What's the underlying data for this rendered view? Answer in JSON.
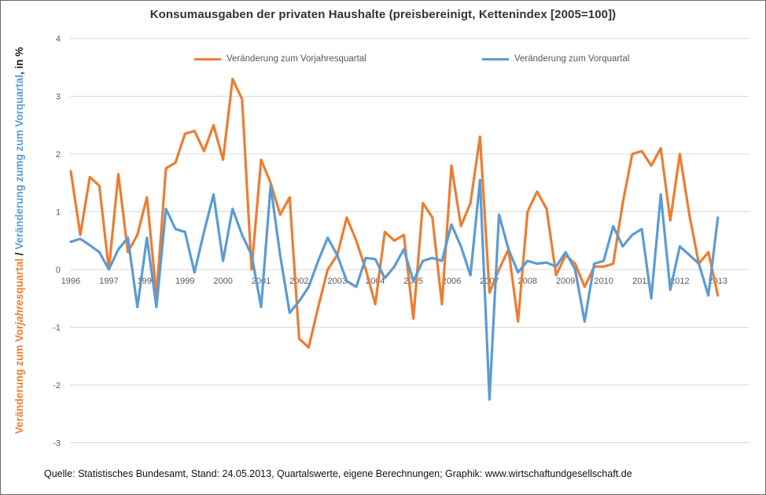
{
  "title": "Konsumausgaben der privaten Haushalte (preisbereinigt, Kettenindex [2005=100])",
  "legend": {
    "yoy": {
      "label": "Veränderung zum Vorjahresquartal",
      "color": "#ED7D31"
    },
    "qoq": {
      "label": "Veränderung zum Vorquartal",
      "color": "#5B9BD5"
    }
  },
  "y_axis_label": {
    "orange_prefix": "Veränderung zum Vor",
    "orange_italic": "jahres",
    "orange_suffix": "quartal",
    "separator": " / ",
    "blue_text": "Veränderung zumg zum Vorquartal",
    "black_suffix": ", in %"
  },
  "source_line": "Quelle: Statistisches Bundesamt, Stand: 24.05.2013,  Quartalswerte, eigene Berechnungen; Graphik: www.wirtschaftundgesellschaft.de",
  "colors": {
    "series_yoy": "#ED7D31",
    "series_qoq": "#5B9BD5",
    "gridline": "#D9D9D9",
    "tick_text": "#595959",
    "title_text": "#333333"
  },
  "chart_data": {
    "type": "line",
    "title": "Konsumausgaben der privaten Haushalte (preisbereinigt, Kettenindex [2005=100])",
    "ylabel": "Veränderung zum Vorjahresquartal / Veränderung zumg zum Vorquartal, in %",
    "ylim": [
      -3,
      4
    ],
    "yticks": [
      4,
      3,
      2,
      1,
      0,
      -1,
      -2,
      -3
    ],
    "grid": "horizontal",
    "legend_position": "top",
    "x_frequency": "quarterly",
    "x_tick_labels": [
      "1996",
      "1997",
      "1998",
      "1999",
      "2000",
      "2001",
      "2002",
      "2003",
      "2004",
      "2005",
      "2006",
      "2007",
      "2008",
      "2009",
      "2010",
      "2011",
      "2012",
      "2013"
    ],
    "x_tick_interval": 4,
    "series": [
      {
        "name": "Veränderung zum Vorjahresquartal",
        "color": "#ED7D31",
        "values": [
          1.7,
          0.6,
          1.6,
          1.45,
          0.0,
          1.65,
          0.3,
          0.6,
          1.25,
          -0.45,
          1.75,
          1.85,
          2.35,
          2.4,
          2.05,
          2.5,
          1.9,
          3.3,
          2.95,
          0.0,
          1.9,
          1.5,
          0.95,
          1.25,
          -1.2,
          -1.35,
          -0.65,
          0.0,
          0.25,
          0.9,
          0.5,
          0.0,
          -0.6,
          0.65,
          0.5,
          0.6,
          -0.85,
          1.15,
          0.9,
          -0.6,
          1.8,
          0.75,
          1.15,
          2.3,
          -0.4,
          0.0,
          0.35,
          -0.9,
          1.0,
          1.35,
          1.05,
          -0.1,
          0.25,
          0.1,
          -0.3,
          0.05,
          0.05,
          0.1,
          1.15,
          2.0,
          2.05,
          1.8,
          2.1,
          0.85,
          2.0,
          0.95,
          0.1,
          0.3,
          -0.45
        ]
      },
      {
        "name": "Veränderung zum Vorquartal",
        "color": "#5B9BD5",
        "values": [
          0.48,
          0.53,
          0.42,
          0.3,
          0.0,
          0.35,
          0.55,
          -0.65,
          0.55,
          -0.65,
          1.05,
          0.7,
          0.65,
          -0.05,
          0.65,
          1.3,
          0.15,
          1.05,
          0.6,
          0.25,
          -0.65,
          1.45,
          0.25,
          -0.75,
          -0.55,
          -0.3,
          0.15,
          0.55,
          0.25,
          -0.2,
          -0.3,
          0.2,
          0.18,
          -0.15,
          0.05,
          0.35,
          -0.2,
          0.15,
          0.2,
          0.15,
          0.78,
          0.4,
          -0.1,
          1.55,
          -2.25,
          0.95,
          0.35,
          -0.05,
          0.15,
          0.1,
          0.12,
          0.05,
          0.3,
          0.0,
          -0.9,
          0.1,
          0.15,
          0.75,
          0.4,
          0.6,
          0.7,
          -0.5,
          1.3,
          -0.35,
          0.4,
          0.25,
          0.1,
          -0.45,
          0.9
        ]
      }
    ]
  }
}
